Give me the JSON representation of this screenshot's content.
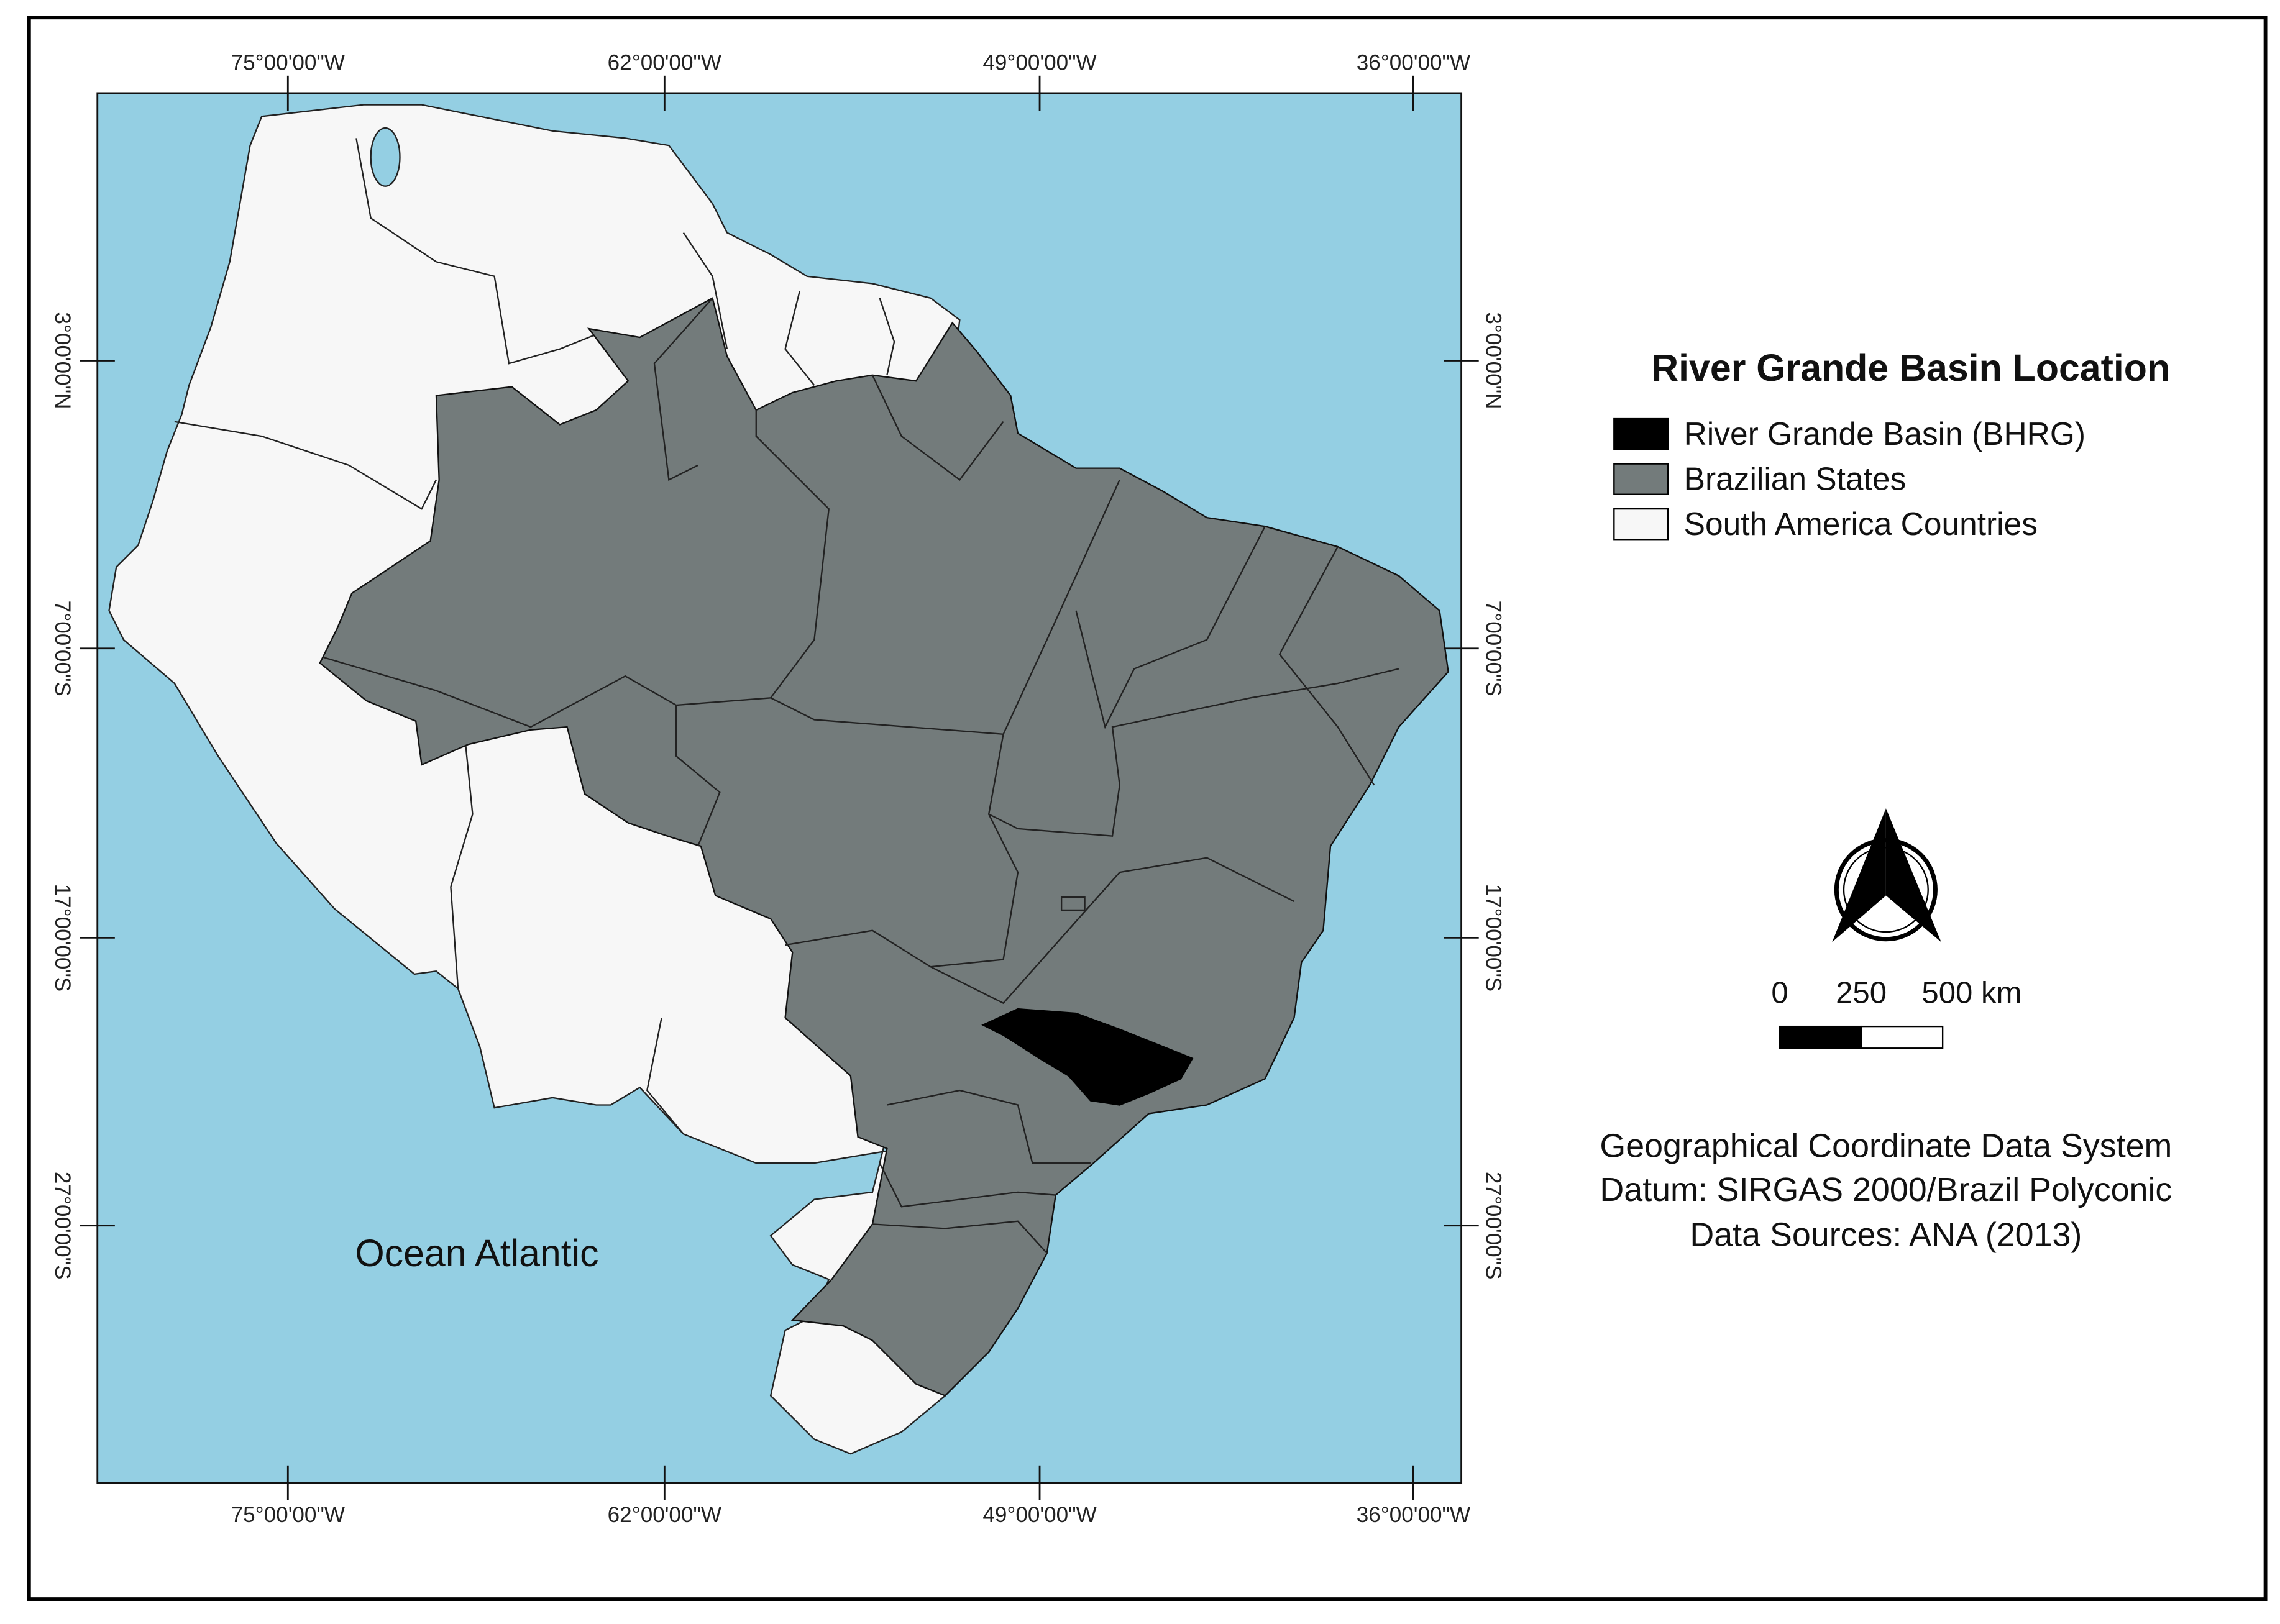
{
  "map": {
    "longitude_labels": [
      "75°00'00\"W",
      "62°00'00\"W",
      "49°00'00\"W",
      "36°00'00\"W"
    ],
    "latitude_labels": [
      "3°00'00\"N",
      "7°00'00\"S",
      "17°00'00\"S",
      "27°00'00\"S"
    ],
    "ocean_label": "Ocean Atlantic"
  },
  "legend": {
    "title": "River Grande Basin Location",
    "items": [
      "River Grande Basin (BHRG)",
      "Brazilian States",
      "South America Countries"
    ]
  },
  "scale_bar": {
    "labels": [
      "0",
      "250",
      "500 km"
    ]
  },
  "notes": [
    "Geographical Coordinate Data System",
    "Datum: SIRGAS 2000/Brazil Polyconic",
    "Data Sources: ANA (2013)"
  ]
}
